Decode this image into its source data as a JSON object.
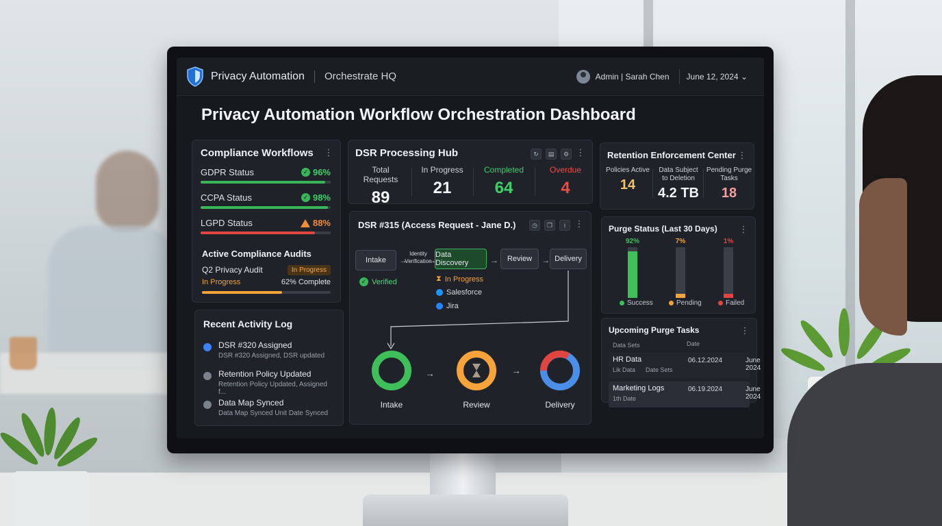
{
  "header": {
    "brand_name": "Privacy Automation",
    "org_name": "Orchestrate HQ",
    "user": "Admin | Sarah Chen",
    "date": "June 12, 2024",
    "date_caret": "⌄"
  },
  "page_title": "Privacy Automation Workflow Orchestration Dashboard",
  "compliance": {
    "title": "Compliance Workflows",
    "statuses": [
      {
        "name": "GDPR Status",
        "value": "96%",
        "percent": 96,
        "state": "ok",
        "color": "#39b55a"
      },
      {
        "name": "CCPA Status",
        "value": "98%",
        "percent": 98,
        "state": "ok",
        "color": "#39b55a"
      },
      {
        "name": "LGPD Status",
        "value": "88%",
        "percent": 88,
        "state": "warning",
        "color": "#e0463f"
      }
    ],
    "audits_title": "Active Compliance Audits",
    "audit": {
      "name": "Q2 Privacy Audit",
      "status": "In Progress",
      "tag": "In Progress",
      "complete": "62% Complete",
      "percent": 62,
      "color": "#f5a33a"
    }
  },
  "dsr_hub": {
    "title": "DSR Processing Hub",
    "stats": [
      {
        "label": "Total Requests",
        "value": "89",
        "color": "#f1f3f6"
      },
      {
        "label": "In Progress",
        "value": "21",
        "color": "#f1f3f6"
      },
      {
        "label": "Completed",
        "value": "64",
        "color": "#3fcf6a"
      },
      {
        "label": "Overdue",
        "value": "4",
        "color": "#ef4b45"
      }
    ]
  },
  "retention": {
    "title": "Retention Enforcement Center",
    "stats": [
      {
        "label": "Policies Active",
        "value": "14",
        "color": "#f1c16a"
      },
      {
        "label": "Data Subject to Deletion",
        "value": "4.2 TB",
        "color": "#f1f3f6"
      },
      {
        "label": "Pending Purge Tasks",
        "value": "18",
        "color": "#f2a0a0"
      }
    ]
  },
  "dsr_detail": {
    "title": "DSR #315 (Access Request - Jane D.)",
    "steps": [
      "Intake",
      "Identity Verification",
      "Data Discovery",
      "Review",
      "Delivery"
    ],
    "notes": {
      "verified": "Verified",
      "in_progress": "In Progress",
      "salesforce": "Salesforce",
      "jira": "Jira"
    },
    "stages": [
      {
        "label": "Intake",
        "state": "complete",
        "color": "#3fbf5a"
      },
      {
        "label": "Review",
        "state": "in-progress",
        "color": "#f5a33a"
      },
      {
        "label": "Delivery",
        "state": "pending",
        "color": "#4a8ee8",
        "accent": "#e0463f"
      }
    ]
  },
  "activity": {
    "title": "Recent Activity Log",
    "items": [
      {
        "title": "DSR #320 Assigned",
        "desc": "DSR #320 Assigned, DSR updated",
        "icon_color": "#3b82f6"
      },
      {
        "title": "Retention Policy Updated",
        "desc": "Retention Policy Updated, Assigned f...",
        "icon_color": "#7a828c"
      },
      {
        "title": "Data Map Synced",
        "desc": "Data Map Synced Unit Date Synced",
        "icon_color": "#7a828c"
      }
    ]
  },
  "purge": {
    "title": "Purge Status (Last 30 Days)",
    "bars": [
      {
        "pct": "92%",
        "value": 92,
        "color": "#3fbf5a"
      },
      {
        "pct": "7%",
        "value": 7,
        "color": "#f5a33a"
      },
      {
        "pct": "1%",
        "value": 1,
        "color": "#e0463f"
      }
    ],
    "legend": [
      {
        "label": "Success",
        "color": "#3fbf5a"
      },
      {
        "label": "Pending",
        "color": "#f5a33a"
      },
      {
        "label": "Failed",
        "color": "#e0463f"
      }
    ]
  },
  "tasks": {
    "title": "Upcoming Purge Tasks",
    "columns": [
      "Data Sets",
      "Date"
    ],
    "rows": [
      {
        "name": "HR Data",
        "sub": "Lik Data",
        "sub2": "Date Sets",
        "date1": "06.12.2024",
        "date2": "June 2024"
      },
      {
        "name": "Marketing Logs",
        "sub": "1th Date",
        "sub2": "",
        "date1": "06.19.2024",
        "date2": "June 2024"
      }
    ]
  }
}
